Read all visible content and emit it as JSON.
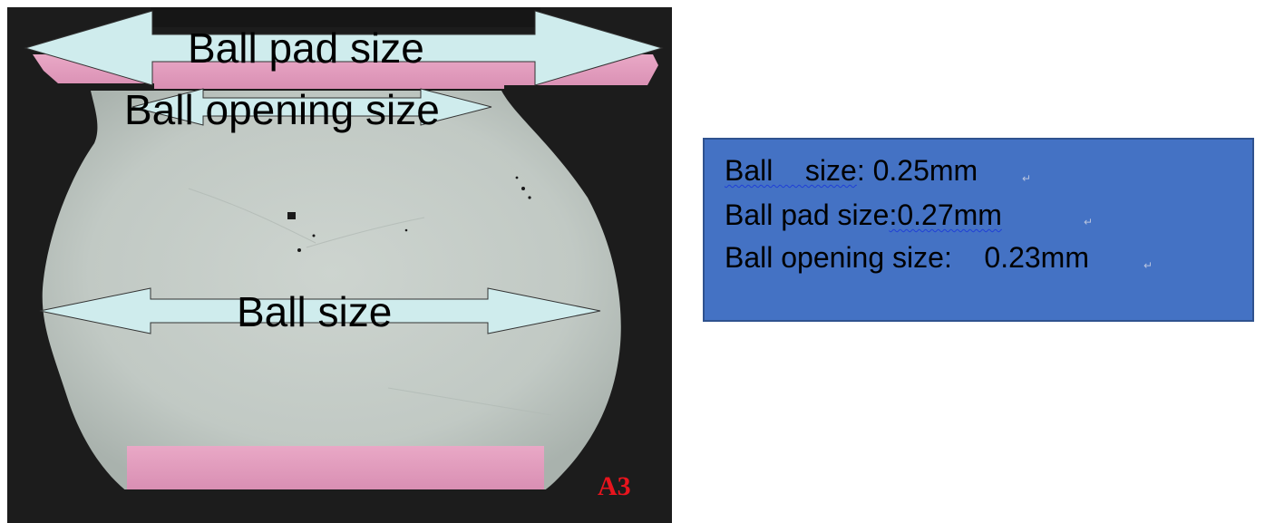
{
  "micrograph": {
    "labels": {
      "ball_pad": "Ball pad size",
      "ball_opening": "Ball opening size",
      "ball": "Ball size"
    },
    "sample_id": "A3",
    "colors": {
      "background": "#1c1c1c",
      "solder_ball": "#c3cbc6",
      "pad": "#e59fc0",
      "arrow_fill": "#cfeced",
      "sample_id": "#e8141d"
    }
  },
  "spec_box": {
    "lines": [
      {
        "label": "Ball    size",
        "value": ": 0.25mm"
      },
      {
        "label": "Ball pad size",
        "value": ":0.27mm"
      },
      {
        "label": "Ball opening size",
        "value": ":    0.23mm"
      }
    ],
    "colors": {
      "fill": "#4472c4",
      "border": "#2f528f"
    }
  }
}
